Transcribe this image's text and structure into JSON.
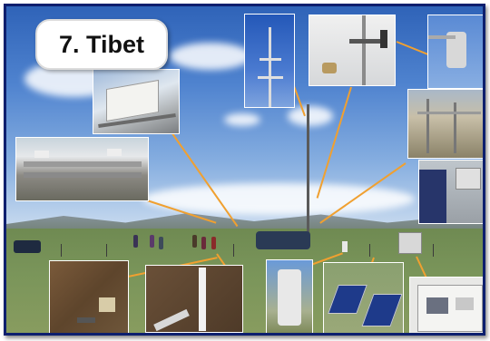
{
  "title": "7. Tibet",
  "colors": {
    "border": "#0d1f6e",
    "connector": "#f0a030",
    "sky_top": "#2f63b8",
    "ground": "#7a955a"
  },
  "photos": [
    "sensor-box-closeup",
    "instrument-rack-closeup",
    "mast-top-sensors",
    "wind-vane-mount",
    "radiometer-closeup",
    "soil-station-closeup",
    "technician-closeup",
    "soil-probe-closeup",
    "ruler-in-soil",
    "rain-gauge",
    "solar-panels",
    "logger-cabinet"
  ]
}
